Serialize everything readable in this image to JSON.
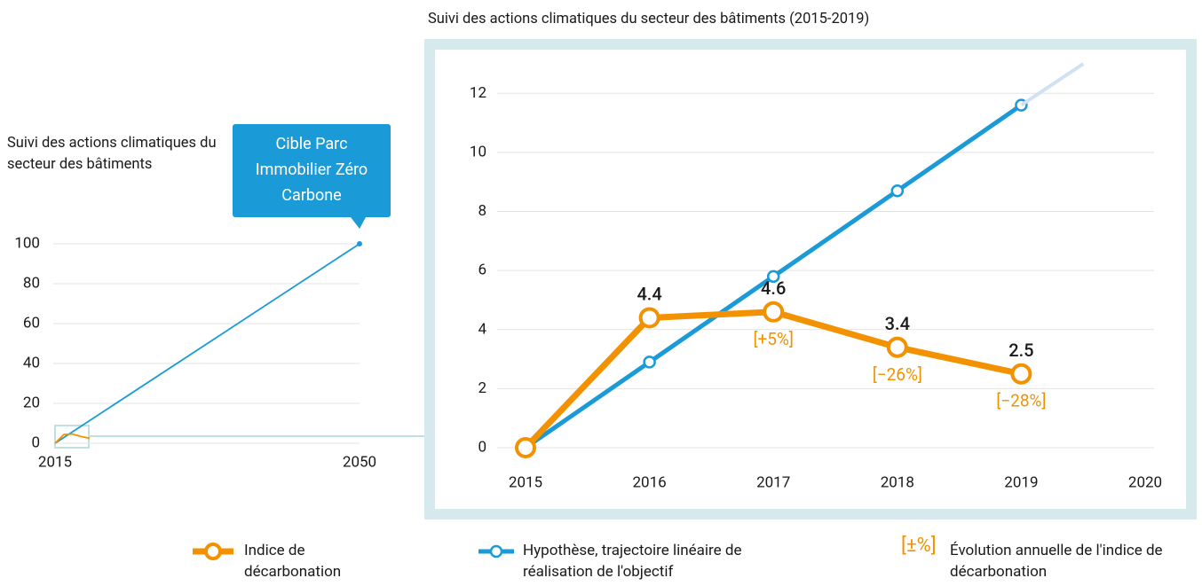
{
  "charts": [
    {
      "type": "line",
      "title": "Suivi des actions climatiques du secteur des bâtiments",
      "annotation": "Cible Parc Immobilier Zéro Carbone",
      "xlim": [
        2015,
        2050
      ],
      "xticks": [
        2015,
        2050
      ],
      "ylim": [
        0,
        100
      ],
      "yticks": [
        0,
        20,
        40,
        60,
        80,
        100
      ],
      "grid": true,
      "series": [
        {
          "color": "#1a9bd7",
          "x": [
            2015,
            2050
          ],
          "values": [
            0,
            100
          ]
        },
        {
          "color": "#f39200",
          "x": [
            2015,
            2016,
            2017,
            2018,
            2019
          ],
          "values": [
            0,
            4.4,
            4.6,
            3.4,
            2.5
          ]
        }
      ]
    },
    {
      "type": "line",
      "title": "Suivi des actions climatiques du secteur des bâtiments (2015-2019)",
      "xlim": [
        2015,
        2020
      ],
      "xticks": [
        2015,
        2016,
        2017,
        2018,
        2019,
        2020
      ],
      "ylim": [
        0,
        13
      ],
      "yticks": [
        0,
        2,
        4,
        6,
        8,
        10,
        12
      ],
      "grid": true,
      "series": [
        {
          "name": "Hypothèse, trajectoire linéaire de réalisation de l'objectif",
          "color": "#1a9bd7",
          "x": [
            2015,
            2016,
            2017,
            2018,
            2019
          ],
          "values": [
            0,
            2.9,
            5.8,
            8.7,
            11.6
          ]
        },
        {
          "color": "#cfe2f3",
          "x": [
            2019,
            2019.5
          ],
          "values": [
            11.6,
            13
          ]
        },
        {
          "name": "Indice de décarbonation",
          "color": "#f39200",
          "x": [
            2015,
            2016,
            2017,
            2018,
            2019
          ],
          "values": [
            0,
            4.4,
            4.6,
            3.4,
            2.5
          ],
          "value_labels": [
            null,
            "4.4",
            "4.6",
            "3.4",
            "2.5"
          ],
          "change_labels": [
            null,
            null,
            "[+5%]",
            "[−26%]",
            "[−28%]"
          ]
        }
      ],
      "change_symbol": "[±%]",
      "change_legend": "Évolution annuelle de l'indice de décarbonation"
    }
  ]
}
